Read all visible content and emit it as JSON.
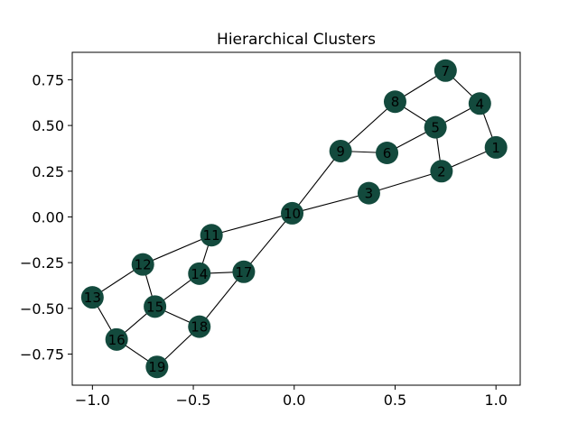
{
  "chart_data": {
    "type": "scatter",
    "title": "Hierarchical Clusters",
    "xlabel": "",
    "ylabel": "",
    "xlim": [
      -1.1,
      1.12
    ],
    "ylim": [
      -0.92,
      0.9
    ],
    "xticks": [
      -1.0,
      -0.5,
      0.0,
      0.5,
      1.0
    ],
    "xtick_labels": [
      "−1.0",
      "−0.5",
      "0.0",
      "0.5",
      "1.0"
    ],
    "yticks": [
      -0.75,
      -0.5,
      -0.25,
      0.0,
      0.25,
      0.5,
      0.75
    ],
    "ytick_labels": [
      "−0.75",
      "−0.50",
      "−0.25",
      "0.00",
      "0.25",
      "0.50",
      "0.75"
    ],
    "grid": false,
    "node_color": "#134a3d",
    "nodes": [
      {
        "id": "1",
        "x": 1.0,
        "y": 0.38
      },
      {
        "id": "2",
        "x": 0.73,
        "y": 0.25
      },
      {
        "id": "3",
        "x": 0.37,
        "y": 0.13
      },
      {
        "id": "4",
        "x": 0.92,
        "y": 0.62
      },
      {
        "id": "5",
        "x": 0.7,
        "y": 0.49
      },
      {
        "id": "6",
        "x": 0.46,
        "y": 0.35
      },
      {
        "id": "7",
        "x": 0.75,
        "y": 0.8
      },
      {
        "id": "8",
        "x": 0.5,
        "y": 0.63
      },
      {
        "id": "9",
        "x": 0.23,
        "y": 0.36
      },
      {
        "id": "10",
        "x": -0.01,
        "y": 0.02
      },
      {
        "id": "11",
        "x": -0.41,
        "y": -0.1
      },
      {
        "id": "12",
        "x": -0.75,
        "y": -0.26
      },
      {
        "id": "13",
        "x": -1.0,
        "y": -0.44
      },
      {
        "id": "14",
        "x": -0.47,
        "y": -0.31
      },
      {
        "id": "15",
        "x": -0.69,
        "y": -0.49
      },
      {
        "id": "16",
        "x": -0.88,
        "y": -0.67
      },
      {
        "id": "17",
        "x": -0.25,
        "y": -0.3
      },
      {
        "id": "18",
        "x": -0.47,
        "y": -0.6
      },
      {
        "id": "19",
        "x": -0.68,
        "y": -0.82
      }
    ],
    "edges": [
      [
        "1",
        "4"
      ],
      [
        "1",
        "2"
      ],
      [
        "2",
        "5"
      ],
      [
        "2",
        "3"
      ],
      [
        "4",
        "7"
      ],
      [
        "4",
        "5"
      ],
      [
        "7",
        "8"
      ],
      [
        "8",
        "5"
      ],
      [
        "8",
        "9"
      ],
      [
        "5",
        "6"
      ],
      [
        "6",
        "9"
      ],
      [
        "9",
        "10"
      ],
      [
        "3",
        "10"
      ],
      [
        "10",
        "11"
      ],
      [
        "10",
        "17"
      ],
      [
        "11",
        "14"
      ],
      [
        "11",
        "12"
      ],
      [
        "12",
        "13"
      ],
      [
        "12",
        "15"
      ],
      [
        "13",
        "16"
      ],
      [
        "14",
        "17"
      ],
      [
        "14",
        "15"
      ],
      [
        "15",
        "16"
      ],
      [
        "15",
        "18"
      ],
      [
        "16",
        "19"
      ],
      [
        "17",
        "18"
      ],
      [
        "18",
        "19"
      ]
    ]
  }
}
